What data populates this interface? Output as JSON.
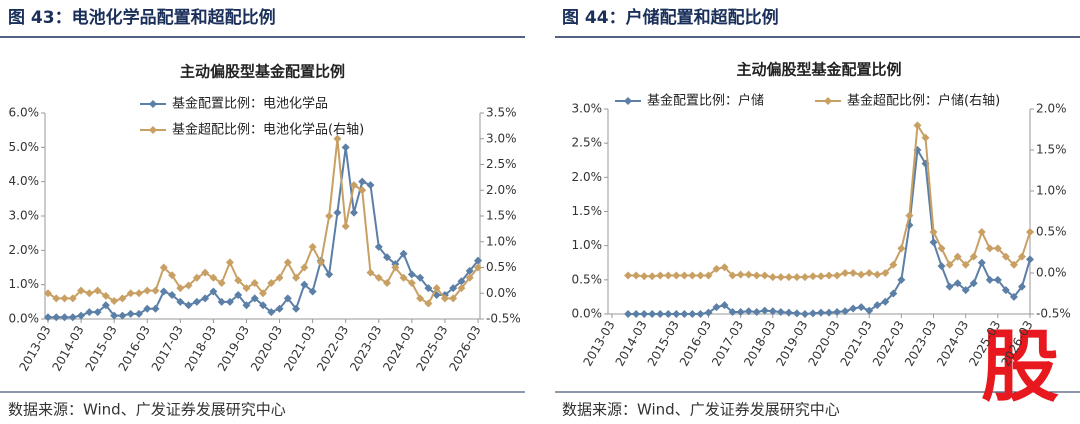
{
  "figures": [
    {
      "heading": "图 43：电池化学品配置和超配比例",
      "source": "数据来源：Wind、广发证券发展研究中心"
    },
    {
      "heading": "图 44：户储配置和超配比例",
      "source": "数据来源：Wind、广发证券发展研究中心"
    }
  ],
  "watermark": "股",
  "chart_data": [
    {
      "type": "line",
      "title": "主动偏股型基金配置比例",
      "legend": "top",
      "categories": [
        "2013-03",
        null,
        null,
        null,
        "2014-03",
        null,
        null,
        null,
        "2015-03",
        null,
        null,
        null,
        "2016-03",
        null,
        null,
        null,
        "2017-03",
        null,
        null,
        null,
        "2018-03",
        null,
        null,
        null,
        "2019-03",
        null,
        null,
        null,
        "2020-03",
        null,
        null,
        null,
        "2021-03",
        null,
        null,
        null,
        "2022-03",
        null,
        null,
        null,
        "2023-03",
        null,
        null,
        null,
        "2024-03",
        null,
        null,
        null,
        "2025-03",
        null,
        null,
        null,
        "2026-03"
      ],
      "ylim": [
        0,
        6
      ],
      "yticks": [
        {
          "value": 0,
          "label": "0.0%"
        },
        {
          "value": 1,
          "label": "1.0%"
        },
        {
          "value": 2,
          "label": "2.0%"
        },
        {
          "value": 3,
          "label": "3.0%"
        },
        {
          "value": 4,
          "label": "4.0%"
        },
        {
          "value": 5,
          "label": "5.0%"
        },
        {
          "value": 6,
          "label": "6.0%"
        }
      ],
      "y2lim": [
        -0.5,
        3.5
      ],
      "y2ticks": [
        {
          "value": -0.5,
          "label": "-0.5%"
        },
        {
          "value": 0,
          "label": "0.0%"
        },
        {
          "value": 0.5,
          "label": "0.5%"
        },
        {
          "value": 1,
          "label": "1.0%"
        },
        {
          "value": 1.5,
          "label": "1.5%"
        },
        {
          "value": 2,
          "label": "2.0%"
        },
        {
          "value": 2.5,
          "label": "2.5%"
        },
        {
          "value": 3,
          "label": "3.0%"
        },
        {
          "value": 3.5,
          "label": "3.5%"
        }
      ],
      "series": [
        {
          "name": "基金配置比例：电池化学品",
          "color": "#5b7fa6",
          "values": [
            0.05,
            0.05,
            0.05,
            0.05,
            0.1,
            0.2,
            0.2,
            0.4,
            0.1,
            0.1,
            0.15,
            0.15,
            0.3,
            0.3,
            0.8,
            0.7,
            0.5,
            0.4,
            0.5,
            0.6,
            0.8,
            0.5,
            0.5,
            0.7,
            0.4,
            0.6,
            0.4,
            0.2,
            0.3,
            0.6,
            0.3,
            1.0,
            0.8,
            1.7,
            1.3,
            3.1,
            5.0,
            3.1,
            4.0,
            3.9,
            2.1,
            1.8,
            1.6,
            1.9,
            1.3,
            1.2,
            0.9,
            0.7,
            0.7,
            0.9,
            1.1,
            1.4,
            1.7
          ]
        },
        {
          "name": "基金超配比例：电池化学品(右轴)",
          "color": "#c9a064",
          "axis": "y2",
          "values": [
            0.0,
            -0.1,
            -0.1,
            -0.1,
            0.05,
            0.0,
            0.05,
            -0.05,
            -0.15,
            -0.1,
            0.0,
            0.0,
            0.05,
            0.05,
            0.5,
            0.35,
            0.1,
            0.15,
            0.3,
            0.4,
            0.3,
            0.2,
            0.6,
            0.25,
            0.1,
            0.2,
            0.0,
            0.2,
            0.3,
            0.6,
            0.3,
            0.5,
            0.9,
            0.6,
            1.5,
            3.0,
            1.3,
            2.1,
            2.0,
            0.4,
            0.3,
            0.2,
            0.5,
            0.3,
            0.2,
            -0.1,
            -0.2,
            0.1,
            -0.1,
            -0.1,
            0.1,
            0.3,
            0.5
          ]
        }
      ]
    },
    {
      "type": "line",
      "title": "主动偏股型基金配置比例",
      "legend": "top",
      "categories": [
        "2013-03",
        null,
        null,
        null,
        "2014-03",
        null,
        null,
        null,
        "2015-03",
        null,
        null,
        null,
        "2016-03",
        null,
        null,
        null,
        "2017-03",
        null,
        null,
        null,
        "2018-03",
        null,
        null,
        null,
        "2019-03",
        null,
        null,
        null,
        "2020-03",
        null,
        null,
        null,
        "2021-03",
        null,
        null,
        null,
        "2022-03",
        null,
        null,
        null,
        "2023-03",
        null,
        null,
        null,
        "2024-03",
        null,
        null,
        null,
        "2025-03",
        null,
        null,
        null,
        "2026-03"
      ],
      "ylim": [
        0,
        3
      ],
      "yticks": [
        {
          "value": 0,
          "label": "0.0%"
        },
        {
          "value": 0.5,
          "label": "0.5%"
        },
        {
          "value": 1,
          "label": "1.0%"
        },
        {
          "value": 1.5,
          "label": "1.5%"
        },
        {
          "value": 2,
          "label": "2.0%"
        },
        {
          "value": 2.5,
          "label": "2.5%"
        },
        {
          "value": 3,
          "label": "3.0%"
        }
      ],
      "y2lim": [
        -0.5,
        2
      ],
      "y2ticks": [
        {
          "value": -0.5,
          "label": "-0.5%"
        },
        {
          "value": 0,
          "label": "0.0%"
        },
        {
          "value": 0.5,
          "label": "0.5%"
        },
        {
          "value": 1,
          "label": "1.0%"
        },
        {
          "value": 1.5,
          "label": "1.5%"
        },
        {
          "value": 2,
          "label": "2.0%"
        }
      ],
      "series": [
        {
          "name": "基金配置比例：户储",
          "color": "#5b7fa6",
          "values": [
            null,
            null,
            0,
            0,
            0,
            0,
            0,
            0,
            0,
            0,
            0,
            0,
            0.02,
            0.1,
            0.13,
            0.03,
            0.03,
            0.04,
            0.03,
            0.05,
            0.04,
            0.03,
            0.02,
            0.01,
            0.0,
            0.01,
            0.02,
            0.02,
            0.03,
            0.04,
            0.08,
            0.1,
            0.05,
            0.13,
            0.18,
            0.3,
            0.5,
            1.3,
            2.4,
            2.2,
            1.05,
            0.7,
            0.4,
            0.45,
            0.35,
            0.45,
            0.75,
            0.5,
            0.5,
            0.35,
            0.25,
            0.4,
            0.8
          ]
        },
        {
          "name": "基金超配比例：户储(右轴)",
          "color": "#c9a064",
          "axis": "y2",
          "values": [
            null,
            null,
            -0.03,
            -0.03,
            -0.04,
            -0.04,
            -0.03,
            -0.03,
            -0.03,
            -0.03,
            -0.03,
            -0.03,
            -0.03,
            0.05,
            0.07,
            -0.03,
            -0.02,
            -0.02,
            -0.03,
            -0.03,
            -0.05,
            -0.05,
            -0.05,
            -0.05,
            -0.05,
            -0.04,
            -0.04,
            -0.03,
            -0.03,
            0.0,
            0.0,
            -0.02,
            0.0,
            -0.02,
            0.0,
            0.1,
            0.3,
            0.7,
            1.8,
            1.65,
            0.5,
            0.3,
            0.1,
            0.2,
            0.1,
            0.2,
            0.5,
            0.3,
            0.3,
            0.2,
            0.1,
            0.2,
            0.5
          ]
        }
      ]
    }
  ]
}
